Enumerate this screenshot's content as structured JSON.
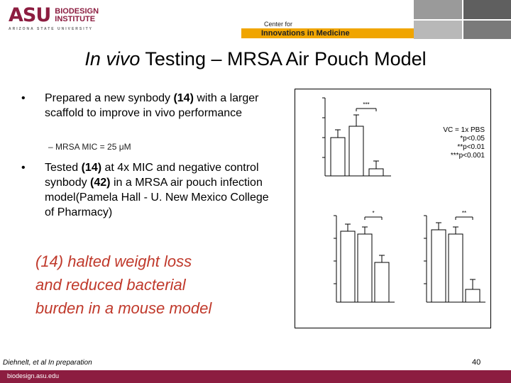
{
  "header": {
    "logo_mark": "ASU",
    "logo_line1": "BIODESIGN",
    "logo_line2": "INSTITUTE",
    "logo_sub": "ARIZONA STATE UNIVERSITY",
    "center_line1": "Center for",
    "center_line2": "Innovations in Medicine"
  },
  "title": {
    "italic": "In vivo",
    "rest": " Testing – MRSA Air Pouch Model"
  },
  "bullets": {
    "b1_a": "Prepared a new synbody ",
    "b1_b": "(14)",
    "b1_c": " with a larger scaffold to improve in vivo performance",
    "sub": "– MRSA MIC = 25 μM",
    "b2_a": "Tested ",
    "b2_b": "(14)",
    "b2_c": " at 4x MIC and negative control synbody ",
    "b2_d": "(42)",
    "b2_e": " in a MRSA air pouch infection model(Pamela Hall - U. New Mexico College of Pharmacy)"
  },
  "highlight": [
    "(14) halted weight loss",
    "and reduced bacterial",
    "burden in a mouse model"
  ],
  "figure": {
    "stat_lines": [
      "VC = 1x PBS",
      "*p<0.05",
      "**p<0.01",
      "***p<0.001"
    ],
    "marker_top": "***",
    "marker_left": "*",
    "marker_right": "**"
  },
  "footer": {
    "citation": "Diehnelt, et al In preparation",
    "page": "40",
    "url": "biodesign.asu.edu"
  },
  "colors": {
    "brand": "#8c1d40",
    "banner": "#f0a500",
    "highlight": "#c0392b"
  }
}
